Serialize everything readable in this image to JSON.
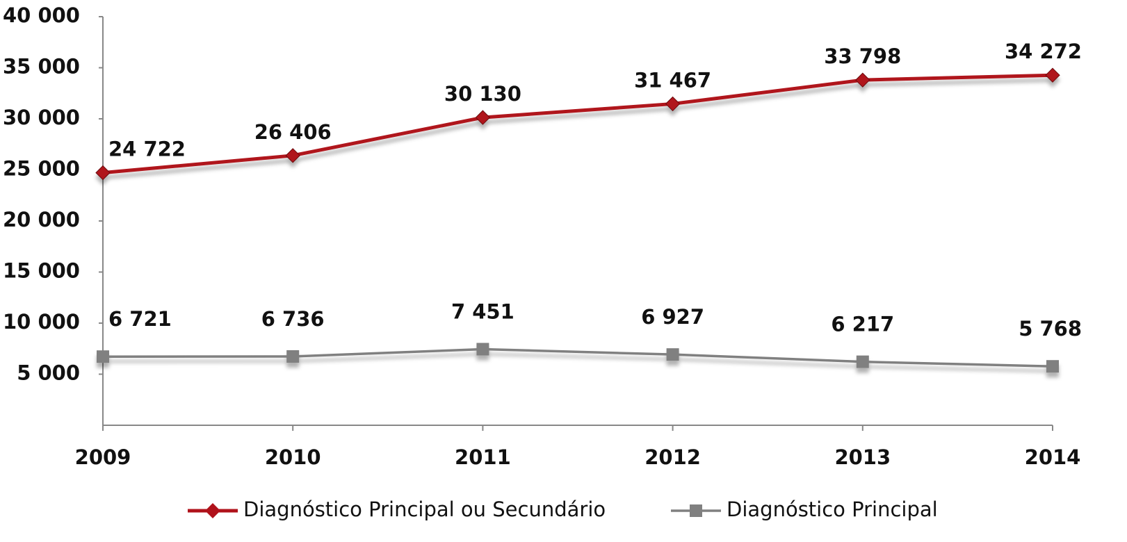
{
  "chart_data": {
    "type": "line",
    "categories": [
      "2009",
      "2010",
      "2011",
      "2012",
      "2013",
      "2014"
    ],
    "series": [
      {
        "name": "Diagnóstico Principal ou Secundário",
        "color": "#b0121b",
        "marker": "diamond",
        "values": [
          24722,
          26406,
          30130,
          31467,
          33798,
          34272
        ],
        "value_labels": [
          "24 722",
          "26 406",
          "30 130",
          "31 467",
          "33 798",
          "34 272"
        ]
      },
      {
        "name": "Diagnóstico Principal",
        "color": "#808080",
        "marker": "square",
        "values": [
          6721,
          6736,
          7451,
          6927,
          6217,
          5768
        ],
        "value_labels": [
          "6 721",
          "6 736",
          "7 451",
          "6 927",
          "6 217",
          "5 768"
        ]
      }
    ],
    "ylim": [
      0,
      40000
    ],
    "yticks": [
      {
        "value": 5000,
        "label": "5 000"
      },
      {
        "value": 10000,
        "label": "10 000"
      },
      {
        "value": 15000,
        "label": "15 000"
      },
      {
        "value": 20000,
        "label": "20 000"
      },
      {
        "value": 25000,
        "label": "25 000"
      },
      {
        "value": 30000,
        "label": "30 000"
      },
      {
        "value": 35000,
        "label": "35 000"
      },
      {
        "value": 40000,
        "label": "40 000"
      }
    ],
    "grid": false,
    "legend": "bottom"
  }
}
